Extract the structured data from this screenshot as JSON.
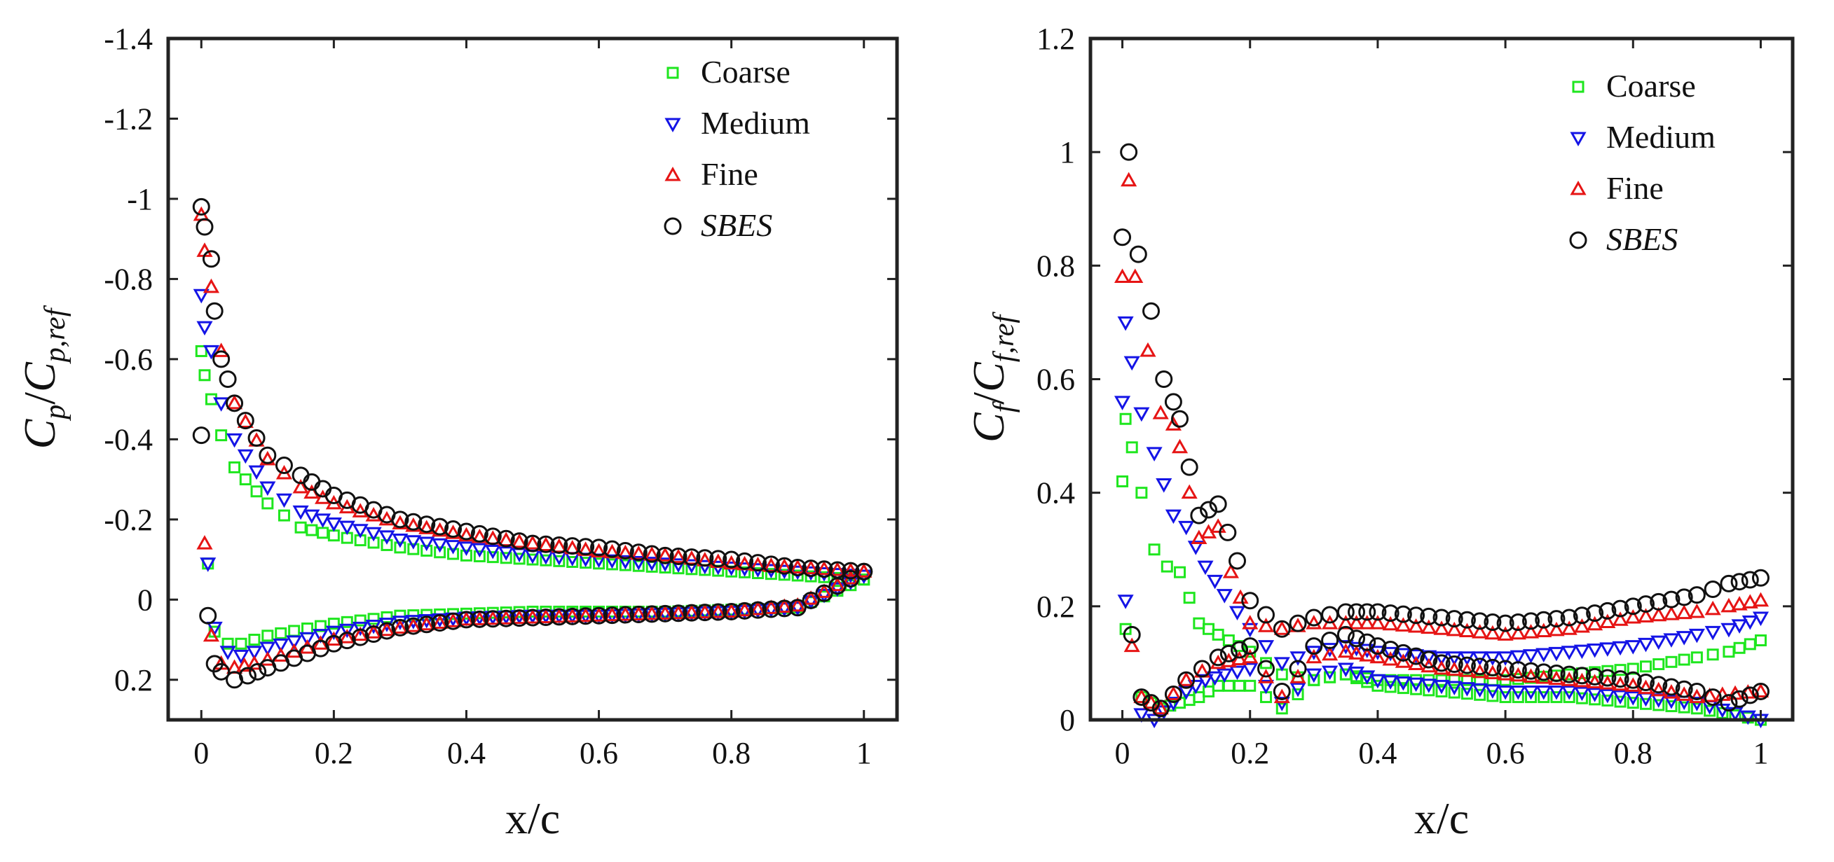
{
  "chart_data": [
    {
      "type": "scatter",
      "xlabel": "x/c",
      "ylabel": "C_p / C_{p,ref}",
      "xlim": [
        -0.05,
        1.05
      ],
      "ylim": [
        -1.4,
        0.3
      ],
      "y_reversed": true,
      "xticks": [
        "0",
        "0.2",
        "0.4",
        "0.6",
        "0.8",
        "1"
      ],
      "xtick_values": [
        0,
        0.2,
        0.4,
        0.6,
        0.8,
        1
      ],
      "yticks": [
        "-1.4",
        "-1.2",
        "-1",
        "-0.8",
        "-0.6",
        "-0.4",
        "-0.2",
        "0",
        "0.2"
      ],
      "ytick_values": [
        -1.4,
        -1.2,
        -1,
        -0.8,
        -0.6,
        -0.4,
        -0.2,
        0,
        0.2
      ],
      "grid": false,
      "legend": "top-right",
      "series": [
        {
          "name": "Coarse",
          "color": "#1ee61e",
          "marker": "square",
          "upper": {
            "x": [
              0,
              0.005,
              0.015,
              0.03,
              0.05,
              0.1,
              0.15,
              0.2,
              0.3,
              0.4,
              0.5,
              0.6,
              0.7,
              0.8,
              0.9,
              1.0
            ],
            "y": [
              -0.62,
              -0.56,
              -0.5,
              -0.41,
              -0.33,
              -0.24,
              -0.18,
              -0.16,
              -0.13,
              -0.11,
              -0.1,
              -0.09,
              -0.08,
              -0.07,
              -0.06,
              -0.05
            ]
          },
          "lower": {
            "x": [
              0.01,
              0.02,
              0.04,
              0.06,
              0.1,
              0.2,
              0.3,
              0.4,
              0.5,
              0.6,
              0.7,
              0.8,
              0.9,
              1.0
            ],
            "y": [
              -0.09,
              0.08,
              0.11,
              0.11,
              0.09,
              0.06,
              0.04,
              0.035,
              0.03,
              0.03,
              0.03,
              0.025,
              0.02,
              -0.05
            ]
          }
        },
        {
          "name": "Medium",
          "color": "#1414e6",
          "marker": "triangle-down",
          "upper": {
            "x": [
              0,
              0.005,
              0.015,
              0.03,
              0.05,
              0.1,
              0.15,
              0.2,
              0.3,
              0.4,
              0.5,
              0.6,
              0.7,
              0.8,
              0.9,
              1.0
            ],
            "y": [
              -0.76,
              -0.68,
              -0.62,
              -0.49,
              -0.4,
              -0.28,
              -0.22,
              -0.19,
              -0.15,
              -0.13,
              -0.11,
              -0.1,
              -0.09,
              -0.08,
              -0.07,
              -0.06
            ]
          },
          "lower": {
            "x": [
              0.01,
              0.02,
              0.04,
              0.06,
              0.1,
              0.2,
              0.3,
              0.4,
              0.5,
              0.6,
              0.7,
              0.8,
              0.9,
              1.0
            ],
            "y": [
              -0.09,
              0.07,
              0.13,
              0.14,
              0.12,
              0.08,
              0.055,
              0.045,
              0.04,
              0.04,
              0.035,
              0.03,
              0.02,
              -0.06
            ]
          }
        },
        {
          "name": "Fine",
          "color": "#e61414",
          "marker": "triangle-up",
          "upper": {
            "x": [
              0,
              0.005,
              0.015,
              0.03,
              0.05,
              0.1,
              0.15,
              0.2,
              0.3,
              0.4,
              0.5,
              0.6,
              0.7,
              0.8,
              0.9,
              1.0
            ],
            "y": [
              -0.96,
              -0.87,
              -0.78,
              -0.62,
              -0.49,
              -0.35,
              -0.28,
              -0.24,
              -0.19,
              -0.16,
              -0.14,
              -0.12,
              -0.11,
              -0.09,
              -0.08,
              -0.07
            ]
          },
          "lower": {
            "x": [
              0.005,
              0.015,
              0.03,
              0.05,
              0.08,
              0.1,
              0.2,
              0.3,
              0.4,
              0.5,
              0.6,
              0.7,
              0.8,
              0.9,
              1.0
            ],
            "y": [
              -0.14,
              0.09,
              0.16,
              0.17,
              0.16,
              0.15,
              0.1,
              0.07,
              0.05,
              0.045,
              0.04,
              0.035,
              0.03,
              0.015,
              -0.07
            ]
          }
        },
        {
          "name": "SBES",
          "color": "#111111",
          "marker": "circle",
          "upper": {
            "x": [
              0,
              0.005,
              0.015,
              0.02,
              0.03,
              0.04,
              0.05,
              0.1,
              0.15,
              0.2,
              0.3,
              0.4,
              0.5,
              0.6,
              0.7,
              0.8,
              0.9,
              1.0
            ],
            "y": [
              -0.98,
              -0.93,
              -0.85,
              -0.72,
              -0.6,
              -0.55,
              -0.49,
              -0.36,
              -0.31,
              -0.26,
              -0.2,
              -0.17,
              -0.14,
              -0.13,
              -0.11,
              -0.1,
              -0.08,
              -0.07
            ]
          },
          "lower": {
            "x": [
              0,
              0.01,
              0.02,
              0.03,
              0.05,
              0.07,
              0.1,
              0.2,
              0.3,
              0.4,
              0.5,
              0.6,
              0.7,
              0.8,
              0.9,
              1.0
            ],
            "y": [
              -0.41,
              0.04,
              0.16,
              0.18,
              0.2,
              0.19,
              0.17,
              0.11,
              0.07,
              0.05,
              0.045,
              0.04,
              0.035,
              0.03,
              0.02,
              -0.07
            ]
          }
        }
      ]
    },
    {
      "type": "scatter",
      "xlabel": "x/c",
      "ylabel": "C_f / C_{f,ref}",
      "xlim": [
        -0.05,
        1.05
      ],
      "ylim": [
        0,
        1.2
      ],
      "y_reversed": false,
      "xticks": [
        "0",
        "0.2",
        "0.4",
        "0.6",
        "0.8",
        "1"
      ],
      "xtick_values": [
        0,
        0.2,
        0.4,
        0.6,
        0.8,
        1
      ],
      "yticks": [
        "0",
        "0.2",
        "0.4",
        "0.6",
        "0.8",
        "1",
        "1.2"
      ],
      "ytick_values": [
        0,
        0.2,
        0.4,
        0.6,
        0.8,
        1,
        1.2
      ],
      "grid": false,
      "legend": "top-right",
      "series": [
        {
          "name": "Coarse",
          "color": "#1ee61e",
          "marker": "square",
          "upper": {
            "x": [
              0,
              0.005,
              0.015,
              0.03,
              0.05,
              0.07,
              0.09,
              0.12,
              0.15,
              0.2,
              0.25,
              0.3,
              0.35,
              0.4,
              0.5,
              0.6,
              0.7,
              0.8,
              0.9,
              0.95,
              1.0
            ],
            "y": [
              0.42,
              0.53,
              0.48,
              0.4,
              0.3,
              0.27,
              0.26,
              0.17,
              0.15,
              0.12,
              0.08,
              0.07,
              0.08,
              0.07,
              0.07,
              0.07,
              0.08,
              0.09,
              0.11,
              0.12,
              0.14
            ]
          },
          "lower": {
            "x": [
              0.005,
              0.03,
              0.06,
              0.09,
              0.12,
              0.15,
              0.2,
              0.25,
              0.3,
              0.35,
              0.4,
              0.5,
              0.6,
              0.7,
              0.8,
              0.9,
              1.0
            ],
            "y": [
              0.16,
              0.04,
              0.02,
              0.03,
              0.04,
              0.06,
              0.06,
              0.02,
              0.07,
              0.08,
              0.06,
              0.05,
              0.04,
              0.04,
              0.03,
              0.02,
              0.0
            ]
          }
        },
        {
          "name": "Medium",
          "color": "#1414e6",
          "marker": "triangle-down",
          "upper": {
            "x": [
              0,
              0.005,
              0.015,
              0.03,
              0.05,
              0.08,
              0.1,
              0.13,
              0.16,
              0.2,
              0.25,
              0.3,
              0.35,
              0.4,
              0.5,
              0.6,
              0.7,
              0.8,
              0.9,
              0.95,
              1.0
            ],
            "y": [
              0.56,
              0.7,
              0.63,
              0.54,
              0.47,
              0.36,
              0.34,
              0.27,
              0.22,
              0.16,
              0.1,
              0.12,
              0.13,
              0.12,
              0.11,
              0.11,
              0.12,
              0.13,
              0.15,
              0.16,
              0.18
            ]
          },
          "lower": {
            "x": [
              0.005,
              0.03,
              0.05,
              0.08,
              0.1,
              0.13,
              0.16,
              0.2,
              0.25,
              0.3,
              0.35,
              0.4,
              0.5,
              0.6,
              0.7,
              0.8,
              0.9,
              1.0
            ],
            "y": [
              0.21,
              0.01,
              0.0,
              0.03,
              0.05,
              0.07,
              0.08,
              0.09,
              0.03,
              0.08,
              0.09,
              0.07,
              0.06,
              0.05,
              0.05,
              0.04,
              0.03,
              0.0
            ]
          }
        },
        {
          "name": "Fine",
          "color": "#e61414",
          "marker": "triangle-up",
          "upper": {
            "x": [
              0,
              0.01,
              0.02,
              0.04,
              0.06,
              0.08,
              0.09,
              0.12,
              0.15,
              0.17,
              0.2,
              0.25,
              0.3,
              0.35,
              0.4,
              0.5,
              0.6,
              0.7,
              0.8,
              0.9,
              0.95,
              1.0
            ],
            "y": [
              0.78,
              0.95,
              0.78,
              0.65,
              0.54,
              0.52,
              0.48,
              0.32,
              0.34,
              0.26,
              0.17,
              0.16,
              0.17,
              0.17,
              0.17,
              0.16,
              0.15,
              0.16,
              0.18,
              0.19,
              0.2,
              0.21
            ]
          },
          "lower": {
            "x": [
              0.015,
              0.03,
              0.06,
              0.1,
              0.15,
              0.2,
              0.25,
              0.3,
              0.35,
              0.4,
              0.5,
              0.6,
              0.7,
              0.8,
              0.9,
              1.0
            ],
            "y": [
              0.13,
              0.04,
              0.02,
              0.07,
              0.1,
              0.11,
              0.04,
              0.11,
              0.12,
              0.11,
              0.09,
              0.08,
              0.07,
              0.06,
              0.04,
              0.05
            ]
          }
        },
        {
          "name": "SBES",
          "color": "#111111",
          "marker": "circle",
          "upper": {
            "x": [
              0,
              0.01,
              0.025,
              0.045,
              0.065,
              0.08,
              0.09,
              0.12,
              0.15,
              0.18,
              0.2,
              0.25,
              0.3,
              0.35,
              0.4,
              0.5,
              0.6,
              0.7,
              0.8,
              0.9,
              0.95,
              1.0
            ],
            "y": [
              0.85,
              1.0,
              0.82,
              0.72,
              0.6,
              0.56,
              0.53,
              0.36,
              0.38,
              0.28,
              0.21,
              0.16,
              0.18,
              0.19,
              0.19,
              0.18,
              0.17,
              0.18,
              0.2,
              0.22,
              0.24,
              0.25
            ]
          },
          "lower": {
            "x": [
              0.015,
              0.03,
              0.06,
              0.1,
              0.15,
              0.2,
              0.25,
              0.3,
              0.35,
              0.4,
              0.5,
              0.6,
              0.7,
              0.8,
              0.9,
              0.95,
              1.0
            ],
            "y": [
              0.15,
              0.04,
              0.02,
              0.07,
              0.11,
              0.13,
              0.05,
              0.13,
              0.15,
              0.13,
              0.1,
              0.09,
              0.08,
              0.07,
              0.05,
              0.03,
              0.05
            ]
          }
        }
      ]
    }
  ]
}
